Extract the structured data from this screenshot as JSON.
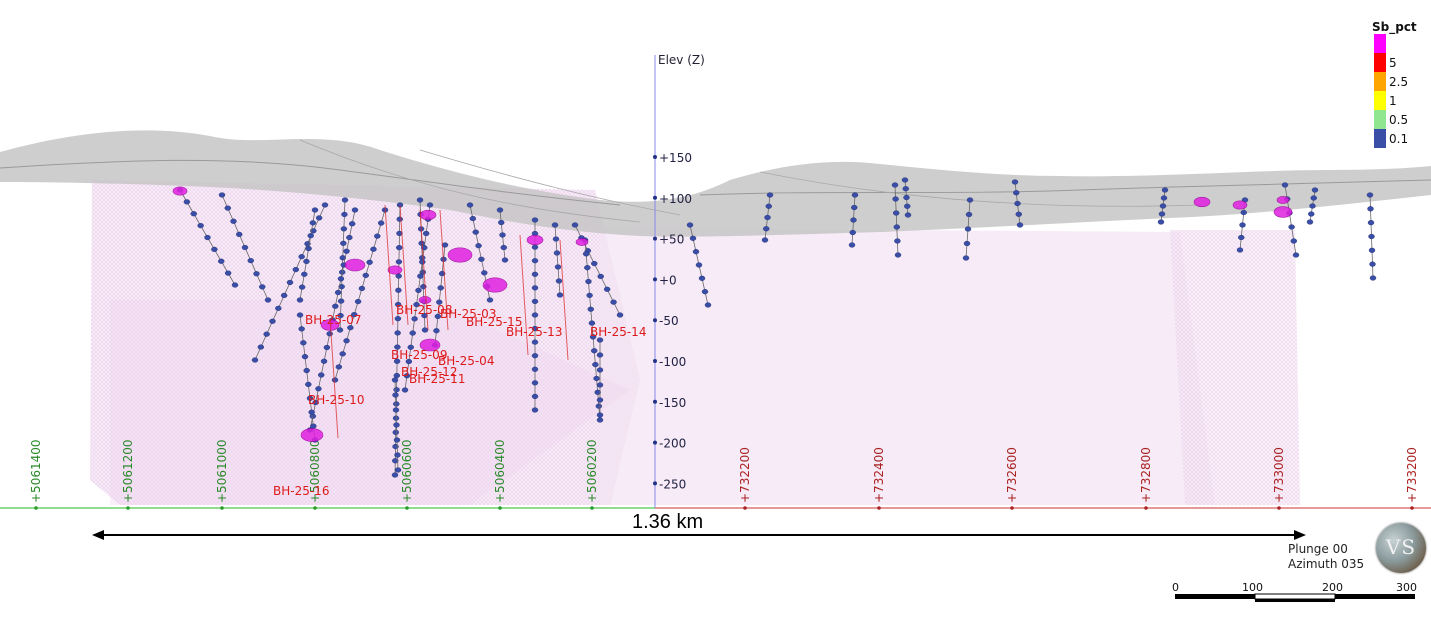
{
  "legend": {
    "title": "Sb_pct",
    "items": [
      {
        "label": "",
        "color": "#ff00ff"
      },
      {
        "label": "5",
        "color": "#ff0000"
      },
      {
        "label": "2.5",
        "color": "#ffa500"
      },
      {
        "label": "1",
        "color": "#ffff00"
      },
      {
        "label": "0.5",
        "color": "#8fe68f"
      },
      {
        "label": "0.1",
        "color": "#3a4ea8"
      }
    ]
  },
  "elevation_axis": {
    "title": "Elev (Z)",
    "ticks": [
      "+150",
      "+100",
      "+50",
      "+0",
      "-50",
      "-100",
      "-150",
      "-200",
      "-250"
    ]
  },
  "northing_ticks": [
    "+5061400",
    "+5061200",
    "+5061000",
    "+5060800",
    "+5060600",
    "+5060400",
    "+5060200"
  ],
  "easting_ticks": [
    "+732200",
    "+732400",
    "+732600",
    "+732800",
    "+733000",
    "+733200"
  ],
  "distance_label": "1.36 km",
  "view": {
    "plunge": "Plunge 00",
    "azimuth": "Azimuth 035"
  },
  "scale_bar": {
    "labels": [
      "0",
      "100",
      "200",
      "300"
    ]
  },
  "logo_text": "VS",
  "holes": [
    "BH-25-07",
    "BH-25-08",
    "BH-25-03",
    "BH-25-15",
    "BH-25-13",
    "BH-25-14",
    "BH-25-09",
    "BH-25-04",
    "BH-25-12",
    "BH-25-11",
    "BH-25-10",
    "BH-25-16"
  ]
}
